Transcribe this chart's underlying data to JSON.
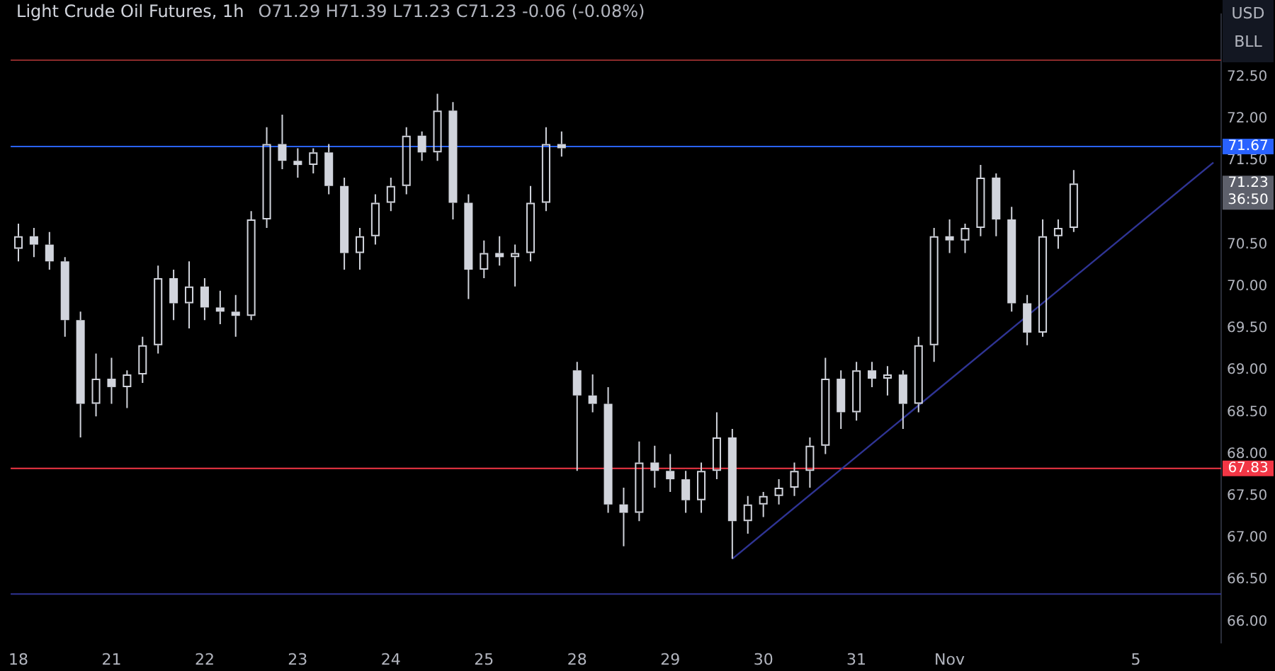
{
  "chart_data": {
    "type": "candlestick",
    "title": "Light Crude Oil Futures, 1h",
    "subtitle": "O71.29 H71.39 L71.23 C71.23 -0.06 (-0.08%)",
    "categories": [
      "18",
      null,
      null,
      null,
      null,
      null,
      "21",
      null,
      null,
      null,
      null,
      null,
      "22",
      null,
      null,
      null,
      null,
      null,
      "23",
      null,
      null,
      null,
      null,
      null,
      "24",
      null,
      null,
      null,
      null,
      null,
      "25",
      null,
      null,
      null,
      null,
      null,
      "28",
      null,
      null,
      null,
      null,
      null,
      "29",
      null,
      null,
      null,
      null,
      null,
      "30",
      null,
      null,
      null,
      null,
      null,
      "31",
      null,
      null,
      null,
      null,
      null,
      "Nov",
      null,
      null,
      null,
      null,
      null,
      null,
      null,
      null,
      null,
      null,
      null,
      "5",
      null,
      null,
      null,
      null,
      null
    ],
    "series": [
      {
        "color": "#d1d4dc",
        "ohlc": [
          [
            70.45,
            70.75,
            70.3,
            70.6
          ],
          [
            70.6,
            70.7,
            70.35,
            70.5
          ],
          [
            70.5,
            70.65,
            70.2,
            70.3
          ],
          [
            70.3,
            70.35,
            69.4,
            69.6
          ],
          [
            69.6,
            69.7,
            68.2,
            68.6
          ],
          [
            68.6,
            69.2,
            68.45,
            68.9
          ],
          [
            68.9,
            69.15,
            68.6,
            68.8
          ],
          [
            68.8,
            69.0,
            68.55,
            68.95
          ],
          [
            68.95,
            69.4,
            68.85,
            69.3
          ],
          [
            69.3,
            70.25,
            69.2,
            70.1
          ],
          [
            70.1,
            70.2,
            69.6,
            69.8
          ],
          [
            69.8,
            70.3,
            69.5,
            70.0
          ],
          [
            70.0,
            70.1,
            69.6,
            69.75
          ],
          [
            69.75,
            69.95,
            69.55,
            69.7
          ],
          [
            69.7,
            69.9,
            69.4,
            69.65
          ],
          [
            69.65,
            70.9,
            69.6,
            70.8
          ],
          [
            70.8,
            71.9,
            70.7,
            71.7
          ],
          [
            71.7,
            72.05,
            71.4,
            71.5
          ],
          [
            71.5,
            71.65,
            71.3,
            71.45
          ],
          [
            71.45,
            71.65,
            71.35,
            71.6
          ],
          [
            71.6,
            71.7,
            71.1,
            71.2
          ],
          [
            71.2,
            71.3,
            70.2,
            70.4
          ],
          [
            70.4,
            70.7,
            70.2,
            70.6
          ],
          [
            70.6,
            71.1,
            70.5,
            71.0
          ],
          [
            71.0,
            71.3,
            70.9,
            71.2
          ],
          [
            71.2,
            71.9,
            71.1,
            71.8
          ],
          [
            71.8,
            71.85,
            71.5,
            71.6
          ],
          [
            71.6,
            72.3,
            71.5,
            72.1
          ],
          [
            72.1,
            72.2,
            70.8,
            71.0
          ],
          [
            71.0,
            71.1,
            69.85,
            70.2
          ],
          [
            70.2,
            70.55,
            70.1,
            70.4
          ],
          [
            70.4,
            70.6,
            70.25,
            70.35
          ],
          [
            70.35,
            70.5,
            70.0,
            70.4
          ],
          [
            70.4,
            71.2,
            70.3,
            71.0
          ],
          [
            71.0,
            71.9,
            70.9,
            71.7
          ],
          [
            71.7,
            71.85,
            71.55,
            71.65
          ],
          [
            69.0,
            69.1,
            67.8,
            68.7
          ],
          [
            68.7,
            68.95,
            68.5,
            68.6
          ],
          [
            68.6,
            68.8,
            67.3,
            67.4
          ],
          [
            67.4,
            67.6,
            66.9,
            67.3
          ],
          [
            67.3,
            68.15,
            67.2,
            67.9
          ],
          [
            67.9,
            68.1,
            67.6,
            67.8
          ],
          [
            67.8,
            68.0,
            67.55,
            67.7
          ],
          [
            67.7,
            67.8,
            67.3,
            67.45
          ],
          [
            67.45,
            67.9,
            67.3,
            67.8
          ],
          [
            67.8,
            68.5,
            67.7,
            68.2
          ],
          [
            68.2,
            68.3,
            66.75,
            67.2
          ],
          [
            67.2,
            67.5,
            67.05,
            67.4
          ],
          [
            67.4,
            67.55,
            67.25,
            67.5
          ],
          [
            67.5,
            67.7,
            67.4,
            67.6
          ],
          [
            67.6,
            67.9,
            67.5,
            67.8
          ],
          [
            67.8,
            68.2,
            67.6,
            68.1
          ],
          [
            68.1,
            69.15,
            68.0,
            68.9
          ],
          [
            68.9,
            69.0,
            68.3,
            68.5
          ],
          [
            68.5,
            69.1,
            68.4,
            69.0
          ],
          [
            69.0,
            69.1,
            68.8,
            68.9
          ],
          [
            68.9,
            69.05,
            68.7,
            68.95
          ],
          [
            68.95,
            69.0,
            68.3,
            68.6
          ],
          [
            68.6,
            69.4,
            68.5,
            69.3
          ],
          [
            69.3,
            70.7,
            69.1,
            70.6
          ],
          [
            70.6,
            70.8,
            70.4,
            70.55
          ],
          [
            70.55,
            70.75,
            70.4,
            70.7
          ],
          [
            70.7,
            71.45,
            70.6,
            71.3
          ],
          [
            71.3,
            71.35,
            70.6,
            70.8
          ],
          [
            70.8,
            70.95,
            69.7,
            69.8
          ],
          [
            69.8,
            69.9,
            69.3,
            69.45
          ],
          [
            69.45,
            70.8,
            69.4,
            70.6
          ],
          [
            70.6,
            70.8,
            70.45,
            70.7
          ],
          [
            70.7,
            71.39,
            70.65,
            71.23
          ],
          null,
          null,
          null,
          null,
          null,
          null,
          null,
          null,
          null
        ]
      },
      {
        "type": "line",
        "color": "#2f3494",
        "values": [
          null,
          null,
          null,
          null,
          null,
          null,
          null,
          null,
          null,
          null,
          null,
          null,
          null,
          null,
          null,
          null,
          null,
          null,
          null,
          null,
          null,
          null,
          null,
          null,
          null,
          null,
          null,
          null,
          null,
          null,
          null,
          null,
          null,
          null,
          null,
          null,
          null,
          null,
          null,
          null,
          null,
          null,
          null,
          null,
          null,
          null,
          66.75,
          null,
          null,
          null,
          null,
          null,
          null,
          null,
          null,
          null,
          null,
          null,
          null,
          null,
          null,
          null,
          null,
          null,
          null,
          null,
          null,
          null,
          null,
          null,
          null,
          null,
          null,
          null,
          null,
          null,
          null,
          71.48
        ]
      }
    ],
    "ylim": [
      65.75,
      73.25
    ],
    "yticks": [
      {
        "value": 66,
        "label": "66.00"
      },
      {
        "value": 66.5,
        "label": "66.50"
      },
      {
        "value": 67,
        "label": "67.00"
      },
      {
        "value": 67.5,
        "label": "67.50"
      },
      {
        "value": 68,
        "label": "68.00"
      },
      {
        "value": 68.5,
        "label": "68.50"
      },
      {
        "value": 69,
        "label": "69.00"
      },
      {
        "value": 69.5,
        "label": "69.50"
      },
      {
        "value": 70,
        "label": "70.00"
      },
      {
        "value": 70.5,
        "label": "70.50"
      },
      {
        "value": 71.5,
        "label": "71.50"
      },
      {
        "value": 72,
        "label": "72.00"
      },
      {
        "value": 72.5,
        "label": "72.50"
      }
    ],
    "ref_lines": [
      {
        "axis": "y",
        "value": 71.67,
        "label": "71.67",
        "color": "#2962ff"
      },
      {
        "axis": "y",
        "value": 66.33,
        "label": null,
        "color": "#2f3494"
      },
      {
        "axis": "y",
        "value": 72.7,
        "label": null,
        "color": "#8b2b2b"
      },
      {
        "axis": "y",
        "value": 67.83,
        "label": "67.83",
        "color": "#f23645"
      }
    ],
    "annotations": [
      "71.23",
      "36:50",
      "USD",
      "BLL"
    ]
  }
}
